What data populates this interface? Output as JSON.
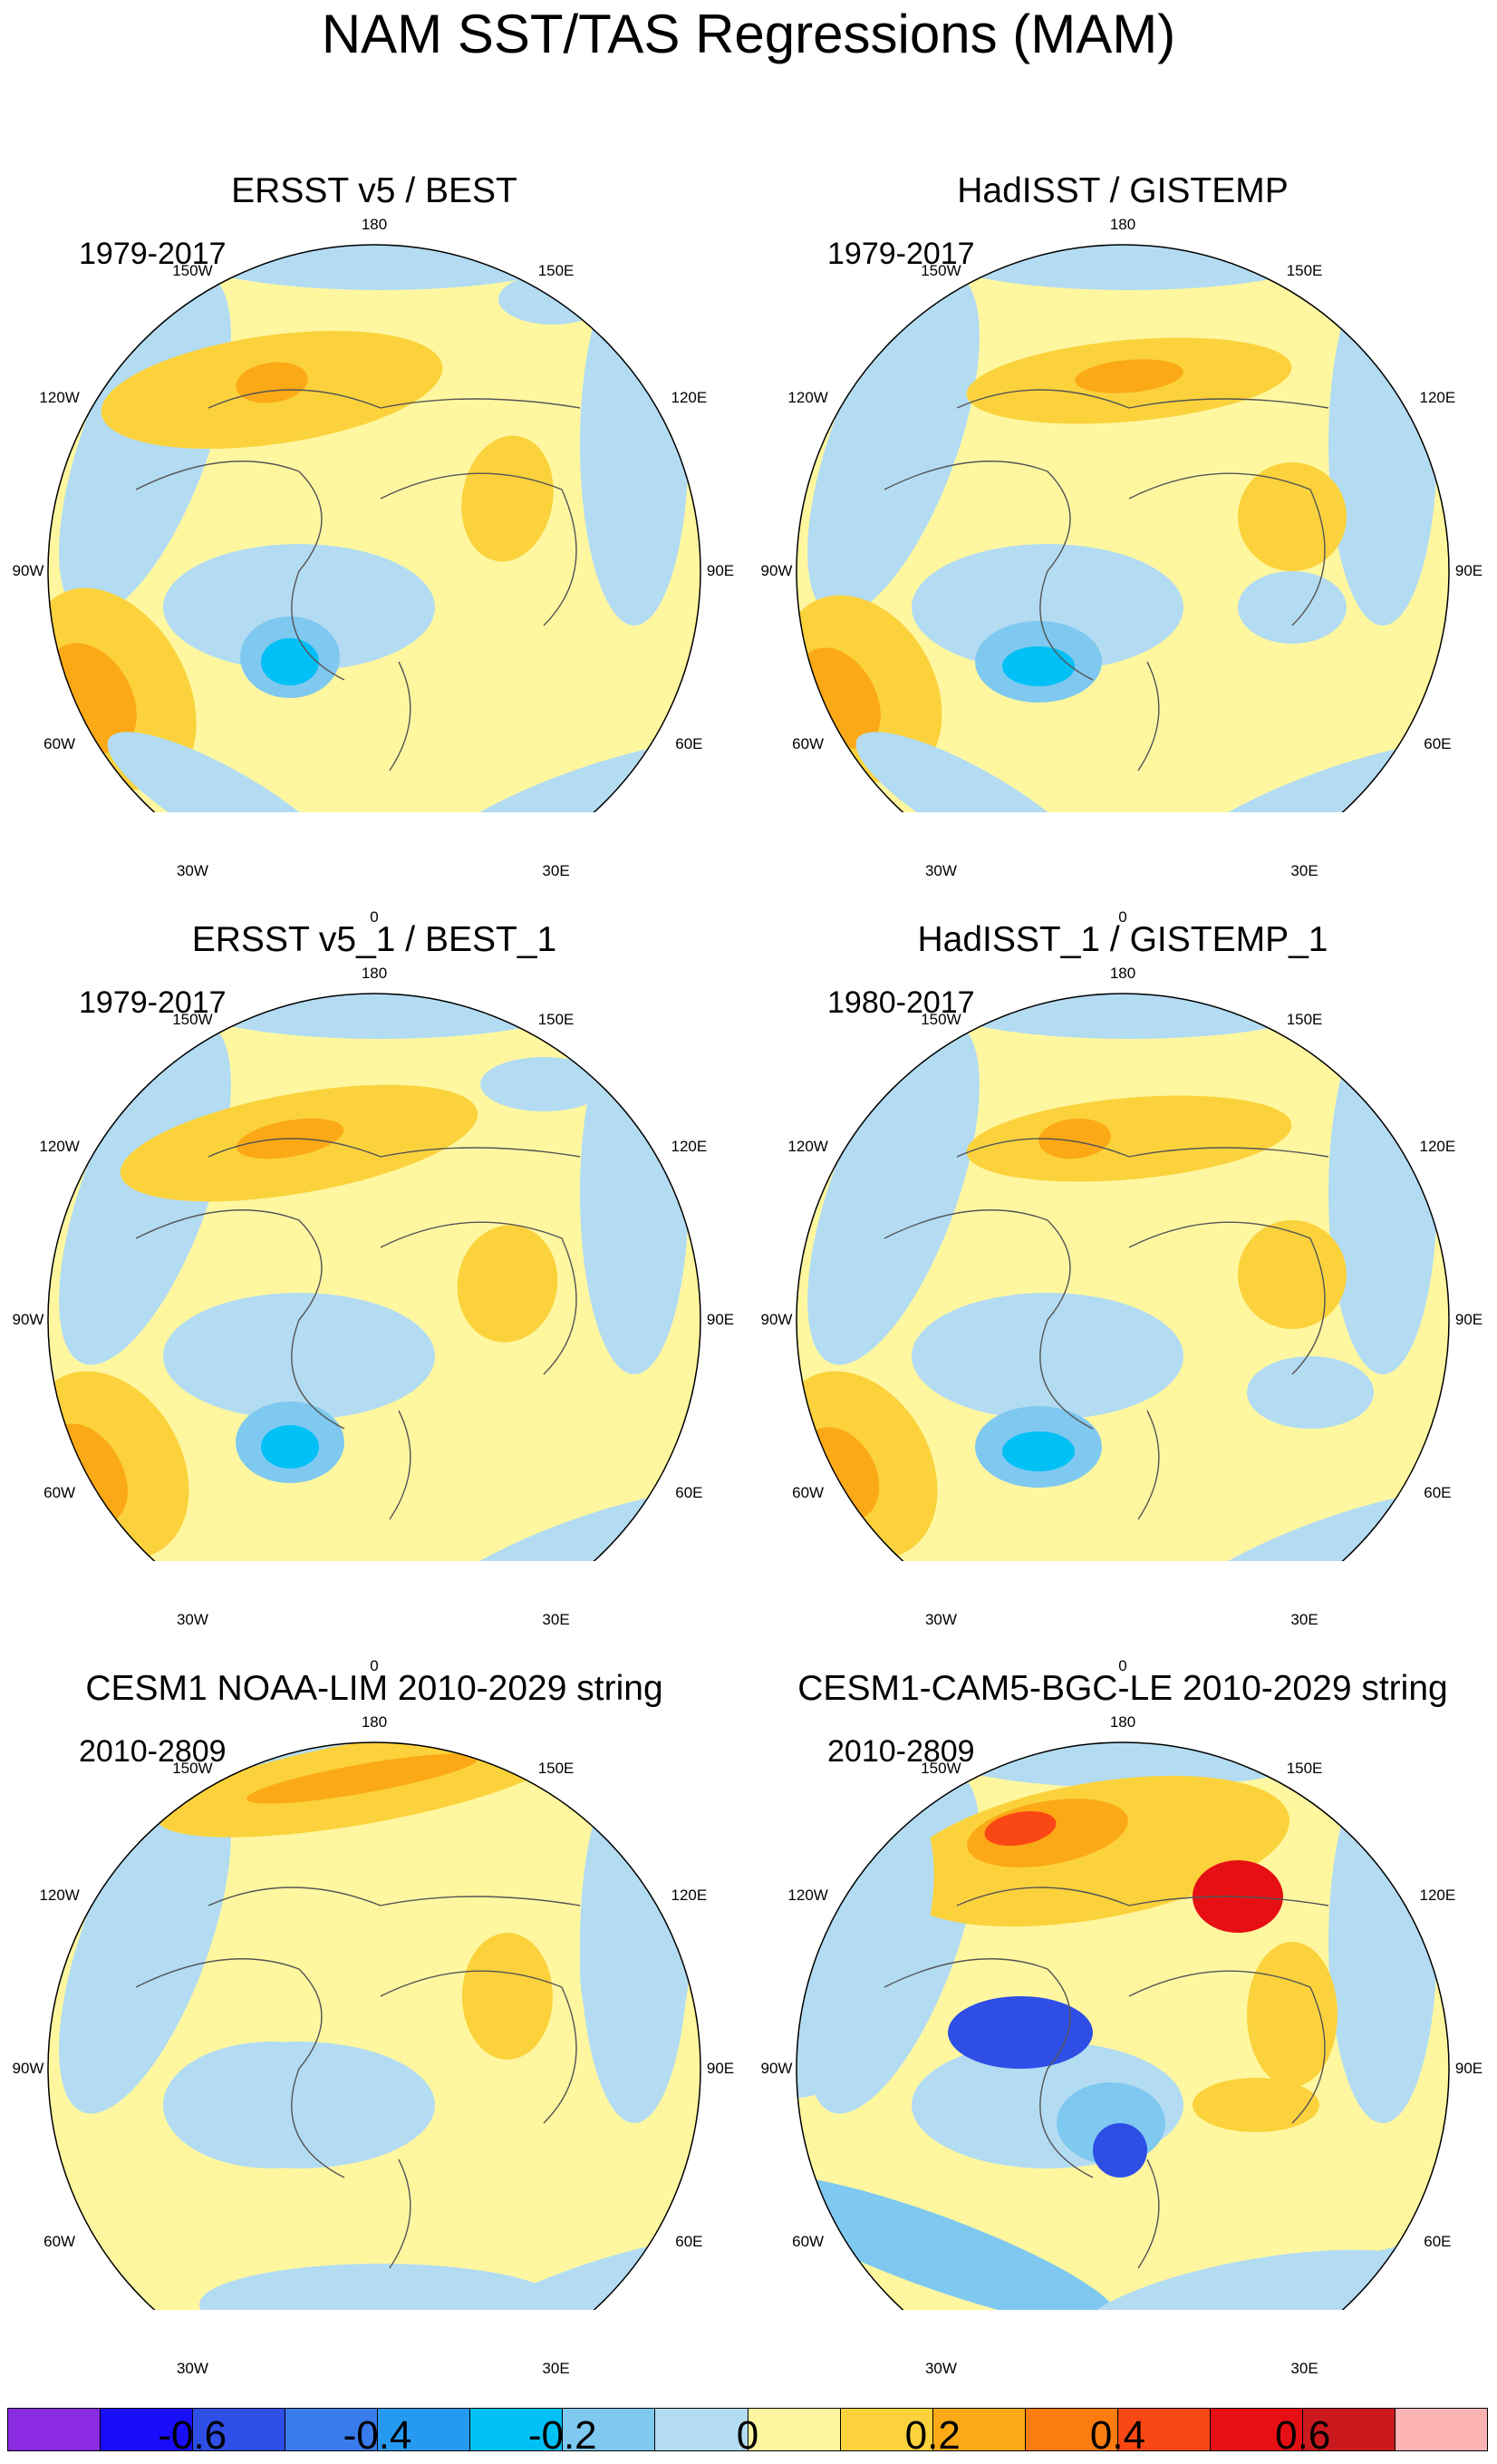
{
  "title": "NAM SST/TAS Regressions (MAM)",
  "lon_labels": [
    "180",
    "150E",
    "120E",
    "90E",
    "60E",
    "30E",
    "0",
    "30W",
    "60W",
    "90W",
    "120W",
    "150W"
  ],
  "panels": [
    {
      "title": "ERSST v5 / BEST",
      "period": "1979-2017"
    },
    {
      "title": "HadISST / GISTEMP",
      "period": "1979-2017"
    },
    {
      "title": "ERSST v5_1 / BEST_1",
      "period": "1979-2017"
    },
    {
      "title": "HadISST_1 / GISTEMP_1",
      "period": "1980-2017"
    },
    {
      "title": "CESM1 NOAA-LIM 2010-2029 string",
      "period": "2010-2809"
    },
    {
      "title": "CESM1-CAM5-BGC-LE 2010-2029 string",
      "period": "2010-2809"
    }
  ],
  "colorbar": {
    "colors": [
      "#8a2be2",
      "#1a0dfa",
      "#2e4ee6",
      "#3a7bec",
      "#2699f2",
      "#00c0f5",
      "#7fc8f0",
      "#b3dcf2",
      "#fff7a0",
      "#fbd23c",
      "#fba916",
      "#fb7d0f",
      "#fa4814",
      "#e60f14",
      "#cb1a1e",
      "#fbb3b3"
    ],
    "tick_labels": [
      "-0.6",
      "-0.4",
      "-0.2",
      "0",
      "0.2",
      "0.4",
      "0.6"
    ]
  }
}
